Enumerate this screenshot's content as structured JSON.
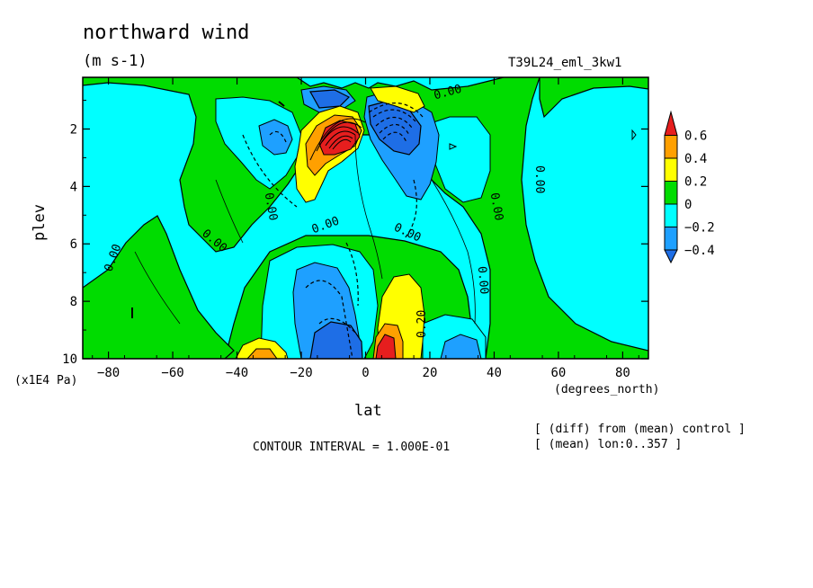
{
  "header": {
    "title": "northward wind",
    "units": "(m s-1)",
    "run_id": "T39L24_eml_3kw1"
  },
  "footer": {
    "contour_interval": "CONTOUR INTERVAL = 1.000E-01",
    "note_line1": "[ (diff) from (mean) control ]",
    "note_line2": "[ (mean) lon:0..357 ]"
  },
  "colors": {
    "level_lt_-0.4": "#1e6ee6",
    "level_-0.4_-0.2": "#1ea0ff",
    "level_-0.2_0": "#00ffff",
    "level_0_0.2": "#00dc00",
    "level_0.2_0.4": "#ffff00",
    "level_0.4_0.6": "#ffa000",
    "level_gt_0.6": "#e61e1e"
  },
  "chart_data": {
    "type": "heatmap",
    "title": "northward wind",
    "subtitle": "(m s-1)",
    "xlabel": "lat",
    "x_units": "(degrees_north)",
    "ylabel": "plev",
    "y_units": "(x1E4 Pa)",
    "xlim": [
      -88,
      88
    ],
    "ylim": [
      10,
      0.2
    ],
    "xticks": [
      -80,
      -60,
      -40,
      -20,
      0,
      20,
      40,
      60,
      80
    ],
    "xtick_labels": [
      "-80",
      "-60",
      "-40",
      "-20",
      "0",
      "20",
      "40",
      "60",
      "80"
    ],
    "yticks": [
      2,
      4,
      6,
      8,
      10
    ],
    "ytick_labels": [
      "2",
      "4",
      "6",
      "8",
      "10"
    ],
    "contour_interval": 0.1,
    "contour_labels": [
      "0.00",
      "0.00",
      "0.00",
      "0.00",
      "0.00",
      "0.00",
      "0.00",
      "0.00",
      "0.20"
    ],
    "colorbar": {
      "levels": [
        -0.4,
        -0.2,
        0,
        0.2,
        0.4,
        0.6
      ],
      "labels": [
        "-0.4",
        "-0.2",
        "0",
        "0.2",
        "0.4",
        "0.6"
      ],
      "colors": [
        "#1e6ee6",
        "#1ea0ff",
        "#00ffff",
        "#00dc00",
        "#ffff00",
        "#ffa000",
        "#e61e1e"
      ]
    },
    "features": [
      {
        "lat": -8,
        "plev": 2.0,
        "value": 0.75
      },
      {
        "lat": -14,
        "plev": 2.4,
        "value": 0.35
      },
      {
        "lat": -18,
        "plev": 3.5,
        "value": 0.25
      },
      {
        "lat": 6,
        "plev": 2.0,
        "value": -0.6
      },
      {
        "lat": 14,
        "plev": 3.2,
        "value": -0.3
      },
      {
        "lat": -28,
        "plev": 2.2,
        "value": -0.2
      },
      {
        "lat": -8,
        "plev": 0.9,
        "value": -0.35
      },
      {
        "lat": 12,
        "plev": 0.9,
        "value": 0.3
      },
      {
        "lat": 5,
        "plev": 9.7,
        "value": 0.65
      },
      {
        "lat": 10,
        "plev": 8.2,
        "value": 0.3
      },
      {
        "lat": -15,
        "plev": 8.6,
        "value": -0.35
      },
      {
        "lat": -6,
        "plev": 9.6,
        "value": -0.5
      },
      {
        "lat": -35,
        "plev": 9.8,
        "value": 0.35
      },
      {
        "lat": 30,
        "plev": 9.8,
        "value": -0.3
      },
      {
        "lat": 25,
        "plev": 3.0,
        "value": 0.05
      }
    ]
  }
}
